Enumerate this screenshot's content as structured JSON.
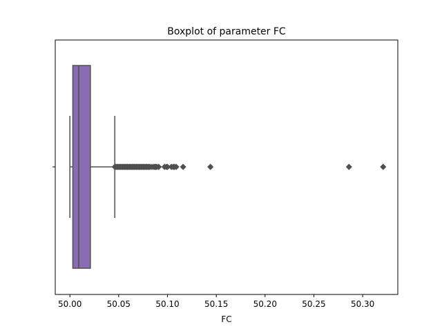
{
  "chart_data": {
    "type": "boxplot",
    "title": "Boxplot of parameter FC",
    "xlabel": "FC",
    "ylabel": "",
    "orientation": "horizontal",
    "xlim": [
      49.985,
      50.336
    ],
    "xticks": [
      50.0,
      50.05,
      50.1,
      50.15,
      50.2,
      50.25,
      50.3
    ],
    "xtick_labels": [
      "50.00",
      "50.05",
      "50.10",
      "50.15",
      "50.20",
      "50.25",
      "50.30"
    ],
    "grid": false,
    "legend": "none",
    "box": {
      "whisker_low": 50.0,
      "q1": 50.003,
      "median": 50.009,
      "q3": 50.021,
      "whisker_high": 50.046,
      "fill_color": "#8a6bb4",
      "line_color": "#4f4f4f"
    },
    "outliers": [
      50.046,
      50.047,
      50.048,
      50.049,
      50.05,
      50.051,
      50.052,
      50.053,
      50.054,
      50.055,
      50.056,
      50.057,
      50.058,
      50.059,
      50.06,
      50.061,
      50.062,
      50.063,
      50.064,
      50.065,
      50.066,
      50.067,
      50.068,
      50.069,
      50.07,
      50.071,
      50.072,
      50.073,
      50.074,
      50.075,
      50.076,
      50.077,
      50.078,
      50.079,
      50.08,
      50.081,
      50.082,
      50.084,
      50.086,
      50.087,
      50.088,
      50.089,
      50.091,
      50.097,
      50.099,
      50.1,
      50.104,
      50.106,
      50.107,
      50.109,
      50.116,
      50.144,
      50.286,
      50.321
    ]
  }
}
